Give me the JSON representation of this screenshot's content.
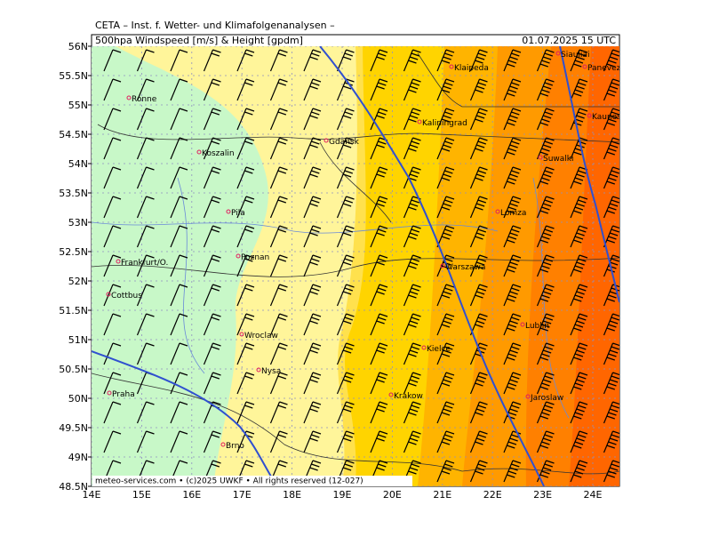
{
  "header": {
    "institute": "CETA – Inst. f. Wetter- und Klimafolgenanalysen –",
    "product": "500hpa Windspeed [m/s] & Height [gpdm]",
    "valid_time": "01.07.2025 15 UTC"
  },
  "axes": {
    "lat_labels": [
      "56N",
      "55.5N",
      "55N",
      "54.5N",
      "54N",
      "53.5N",
      "53N",
      "52.5N",
      "52N",
      "51.5N",
      "51N",
      "50.5N",
      "50N",
      "49.5N",
      "49N",
      "48.5N"
    ],
    "lon_labels": [
      "14E",
      "15E",
      "16E",
      "17E",
      "18E",
      "19E",
      "20E",
      "21E",
      "22E",
      "23E",
      "24E"
    ]
  },
  "cities": [
    "Ronne",
    "Koszalin",
    "Gdansk",
    "Kaliningrad",
    "Klaipeda",
    "Siauliai",
    "Panevezys",
    "Kaunos",
    "Suwalki",
    "Pila",
    "Lomza",
    "Poznan",
    "Frankfurt/O.",
    "Warszawa",
    "Cottbus",
    "Lublin",
    "Wroclaw",
    "Kielce",
    "Nysa",
    "Praha",
    "Krakow",
    "Jaroslaw",
    "Brno"
  ],
  "footer": "meteo-services.com • (c)2025 UWKF • All rights reserved (12-027)"
}
